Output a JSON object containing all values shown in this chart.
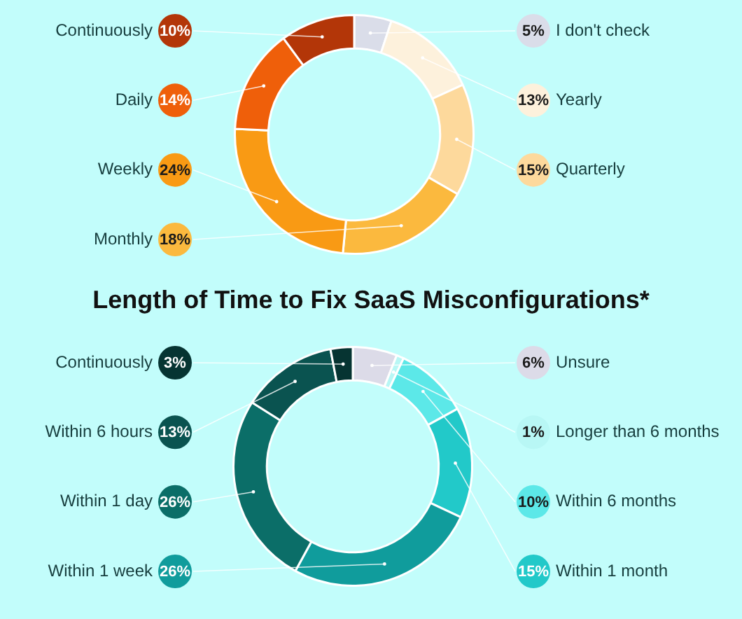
{
  "chart_data": [
    {
      "type": "donut",
      "legend": "left",
      "categories": [
        "I don't check",
        "Yearly",
        "Quarterly",
        "Monthly",
        "Weekly",
        "Daily",
        "Continuously"
      ],
      "values": [
        5,
        13,
        15,
        18,
        24,
        14,
        10
      ],
      "colors": [
        "#dadde9",
        "#fdf1dc",
        "#fdd99c",
        "#fbb93e",
        "#f99a14",
        "#ef5f0a",
        "#b33608"
      ],
      "value_labels": [
        "5%",
        "13%",
        "15%",
        "18%",
        "24%",
        "14%",
        "10%"
      ]
    },
    {
      "type": "donut",
      "legend": "right",
      "title": "Length of Time to Fix SaaS Misconfigurations*",
      "categories": [
        "Unsure",
        "Longer than 6 months",
        "Within 6 months",
        "Within 1 month",
        "Within 1 week",
        "Within 1 day",
        "Within 6 hours",
        "Continuously"
      ],
      "values": [
        6,
        1,
        10,
        15,
        26,
        26,
        13,
        3
      ],
      "colors": [
        "#dcdbe8",
        "#b8f7f5",
        "#5ce8e8",
        "#22c9c9",
        "#109c9c",
        "#0b6e68",
        "#0a5350",
        "#063432"
      ],
      "value_labels": [
        "6%",
        "1%",
        "10%",
        "15%",
        "26%",
        "26%",
        "13%",
        "3%"
      ]
    }
  ]
}
